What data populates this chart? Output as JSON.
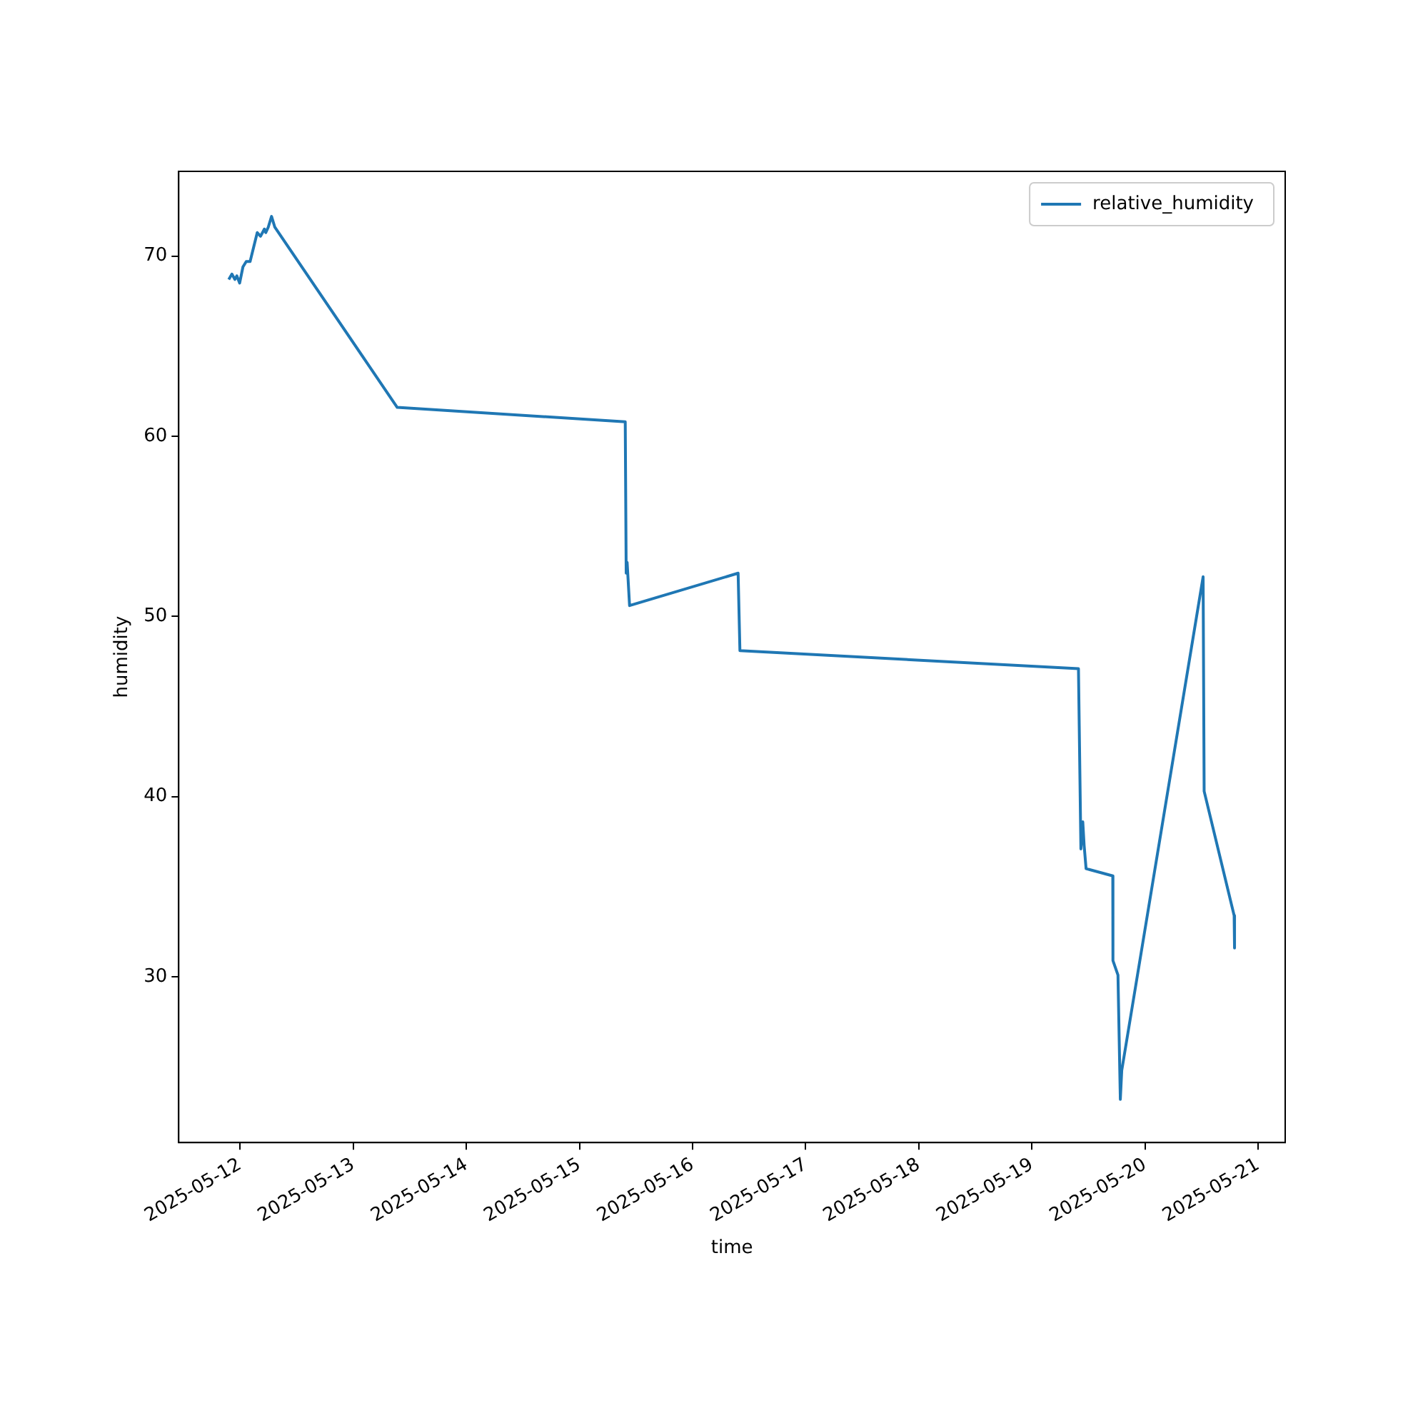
{
  "chart_data": {
    "type": "line",
    "xlabel": "time",
    "ylabel": "humidity",
    "x": [
      "2025-05-11T21:35",
      "2025-05-11T22:16",
      "2025-05-11T22:53",
      "2025-05-11T23:18",
      "2025-05-11T23:54",
      "2025-05-12T00:36",
      "2025-05-12T01:18",
      "2025-05-12T02:07",
      "2025-05-12T03:38",
      "2025-05-12T04:20",
      "2025-05-12T05:09",
      "2025-05-12T05:27",
      "2025-05-12T05:58",
      "2025-05-12T06:40",
      "2025-05-12T07:22",
      "2025-05-13T09:20",
      "2025-05-15T09:43",
      "2025-05-15T09:55",
      "2025-05-15T10:07",
      "2025-05-15T10:38",
      "2025-05-16T09:40",
      "2025-05-16T10:03",
      "2025-05-19T09:53",
      "2025-05-19T10:24",
      "2025-05-19T10:48",
      "2025-05-19T11:05",
      "2025-05-19T11:30",
      "2025-05-19T17:10",
      "2025-05-19T17:12",
      "2025-05-19T18:16",
      "2025-05-19T18:46",
      "2025-05-19T19:04",
      "2025-05-20T12:20",
      "2025-05-20T12:33",
      "2025-05-20T18:55",
      "2025-05-20T19:00"
    ],
    "series": [
      {
        "name": "relative_humidity",
        "color": "#1f77b4",
        "values": [
          68.7,
          69.0,
          68.7,
          68.9,
          68.5,
          69.4,
          69.7,
          69.7,
          71.3,
          71.1,
          71.5,
          71.3,
          71.6,
          72.2,
          71.6,
          61.6,
          60.8,
          52.4,
          53.0,
          50.6,
          52.4,
          48.1,
          47.1,
          37.1,
          38.6,
          37.3,
          36.0,
          35.6,
          30.9,
          30.1,
          23.2,
          24.8,
          52.2,
          40.3,
          33.4,
          31.6
        ]
      }
    ],
    "xlim": [
      "2025-05-11T10:58",
      "2025-05-21T05:45"
    ],
    "xticks": [
      "2025-05-12",
      "2025-05-13",
      "2025-05-14",
      "2025-05-15",
      "2025-05-16",
      "2025-05-17",
      "2025-05-18",
      "2025-05-19",
      "2025-05-20",
      "2025-05-21"
    ],
    "ylim": [
      20.8,
      74.7
    ],
    "yticks": [
      30,
      40,
      50,
      60,
      70
    ],
    "legend": "top right",
    "marker": "none",
    "line_style": "solid"
  }
}
